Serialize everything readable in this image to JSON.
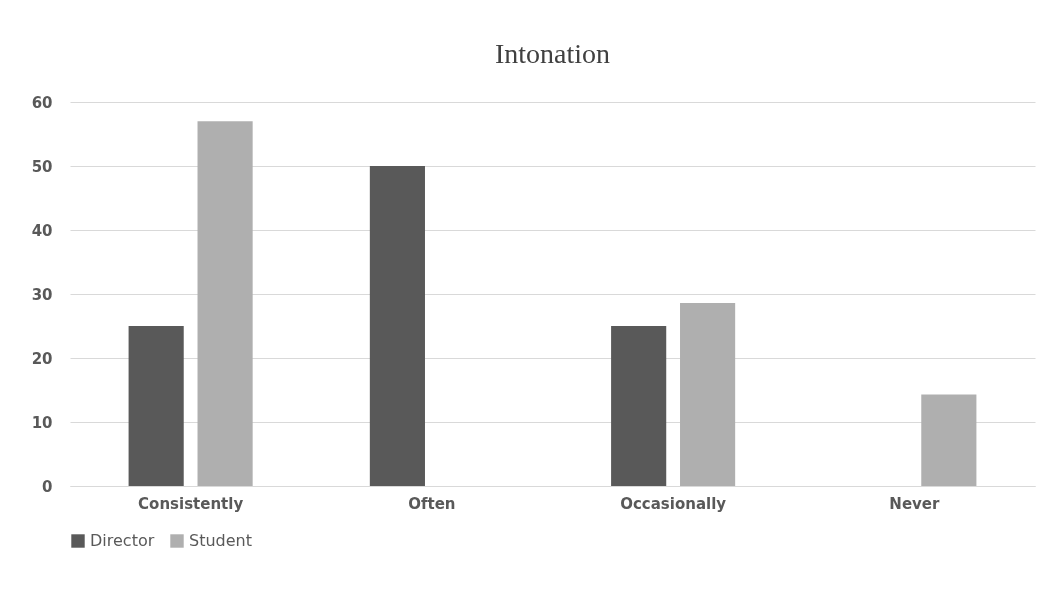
{
  "chart_data": {
    "type": "bar",
    "title": "Intonation",
    "categories": [
      "Consistently",
      "Often",
      "Occasionally",
      "Never"
    ],
    "series": [
      {
        "name": "Director",
        "color": "#595959",
        "values": [
          25,
          50,
          25,
          0
        ]
      },
      {
        "name": "Student",
        "color": "#afafaf",
        "values": [
          57,
          0,
          28.6,
          14.3
        ]
      }
    ],
    "ylim": [
      0,
      60
    ],
    "yticks": [
      0,
      10,
      20,
      30,
      40,
      50,
      60
    ],
    "grid": "y",
    "legend": "bottom"
  }
}
